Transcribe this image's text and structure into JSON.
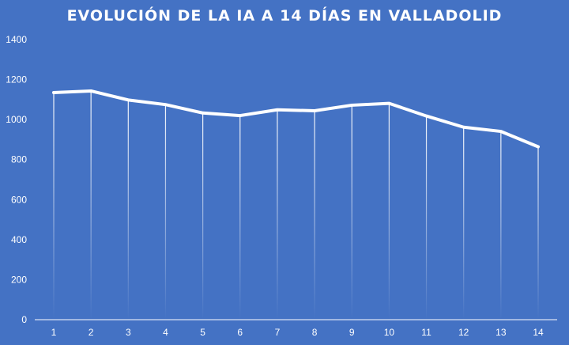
{
  "chart_data": {
    "type": "line",
    "title": "EVOLUCIÓN DE LA IA A 14 DÍAS EN VALLADOLID",
    "xlabel": "",
    "ylabel": "",
    "categories": [
      "1",
      "2",
      "3",
      "4",
      "5",
      "6",
      "7",
      "8",
      "9",
      "10",
      "11",
      "12",
      "13",
      "14"
    ],
    "series": [
      {
        "values": [
          1135,
          1143,
          1098,
          1075,
          1033,
          1020,
          1049,
          1044,
          1072,
          1081,
          1018,
          962,
          941,
          864
        ]
      }
    ],
    "ylim": [
      0,
      1400
    ],
    "yticks": [
      "0",
      "200",
      "400",
      "600",
      "800",
      "1000",
      "1200",
      "1400"
    ],
    "grid": "vertical drop lines at each point",
    "legend": "none",
    "colors": {
      "background": "#4472C4",
      "line": "#ffffff",
      "text": "#ffffff"
    }
  }
}
